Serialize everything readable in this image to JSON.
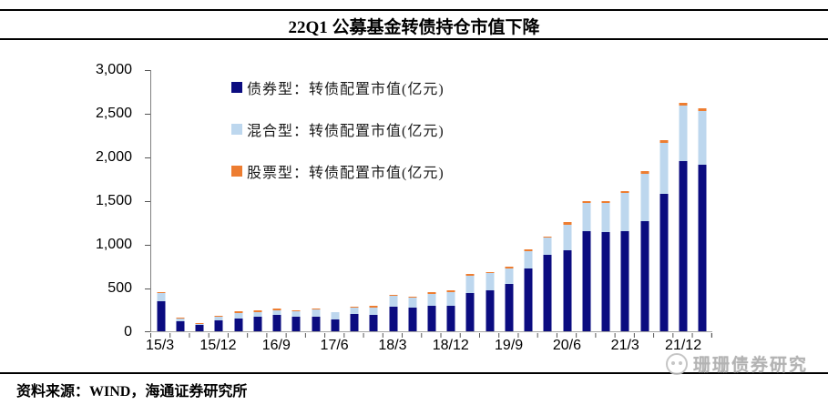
{
  "title": "22Q1 公募基金转债持仓市值下降",
  "source": "资料来源：WIND，海通证券研究所",
  "watermark": "珊珊债券研究",
  "colors": {
    "bond": "#0b0c80",
    "hybrid": "#bdd7ee",
    "equity": "#ed7d31",
    "axis": "#808080",
    "tick": "#555555"
  },
  "legend": [
    {
      "label": "债券型：转债配置市值(亿元)",
      "series": "bond"
    },
    {
      "label": "混合型：转债配置市值(亿元)",
      "series": "hybrid"
    },
    {
      "label": "股票型：转债配置市值(亿元)",
      "series": "equity"
    }
  ],
  "y_axis": {
    "tick_labels": [
      "3,000",
      "2,500",
      "2,000",
      "1,500",
      "1,000",
      "500",
      "0"
    ],
    "max": 3000,
    "min": 0
  },
  "x_axis": {
    "labels": [
      "15/3",
      "15/12",
      "16/9",
      "17/6",
      "18/3",
      "18/12",
      "19/9",
      "20/6",
      "21/3",
      "21/12"
    ],
    "label_every": 3
  },
  "chart_data": {
    "type": "bar",
    "stacked": true,
    "title": "22Q1 公募基金转债持仓市值下降",
    "ylabel": "转债配置市值(亿元)",
    "ylim": [
      0,
      3000
    ],
    "grid": false,
    "legend_position": "top-left-inside",
    "categories": [
      "15/3",
      "15/6",
      "15/9",
      "15/12",
      "16/3",
      "16/6",
      "16/9",
      "16/12",
      "17/3",
      "17/6",
      "17/9",
      "17/12",
      "18/3",
      "18/6",
      "18/9",
      "18/12",
      "19/3",
      "19/6",
      "19/9",
      "19/12",
      "20/3",
      "20/6",
      "20/9",
      "20/12",
      "21/3",
      "21/6",
      "21/9",
      "21/12",
      "22/3"
    ],
    "series": [
      {
        "name": "债券型：转债配置市值(亿元)",
        "key": "bond",
        "color": "#0b0c80",
        "values": [
          350,
          120,
          70,
          128,
          150,
          167,
          190,
          163,
          167,
          140,
          198,
          187,
          285,
          267,
          288,
          295,
          434,
          468,
          548,
          722,
          878,
          930,
          1145,
          1140,
          1155,
          1260,
          1580,
          1950,
          1915
        ]
      },
      {
        "name": "混合型：转债配置市值(亿元)",
        "key": "hybrid",
        "color": "#bdd7ee",
        "values": [
          90,
          25,
          12,
          38,
          62,
          56,
          52,
          66,
          85,
          76,
          69,
          90,
          121,
          118,
          142,
          153,
          208,
          198,
          173,
          194,
          194,
          295,
          330,
          335,
          435,
          545,
          585,
          640,
          615
        ]
      },
      {
        "name": "股票型：转债配置市值(亿元)",
        "key": "equity",
        "color": "#ed7d31",
        "values": [
          5,
          10,
          8,
          14,
          14,
          14,
          17,
          14,
          14,
          7,
          14,
          14,
          17,
          17,
          17,
          24,
          17,
          17,
          17,
          20,
          20,
          25,
          25,
          25,
          25,
          35,
          30,
          30,
          30
        ]
      }
    ]
  }
}
